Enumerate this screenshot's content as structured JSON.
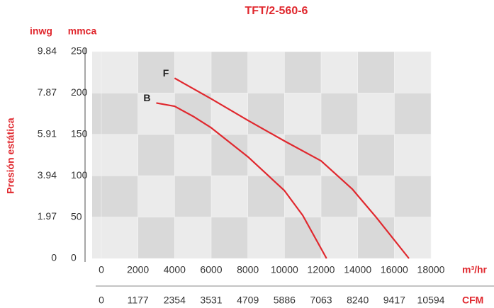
{
  "chart_data": {
    "type": "line",
    "title": "TFT/2-560-6",
    "y_label": "Presión estática",
    "y_unit": "mmca",
    "y2_unit": "inwg",
    "x_unit": "m³/hr",
    "x2_unit": "CFM",
    "xlim": [
      0,
      18000
    ],
    "xticks": [
      0,
      2000,
      4000,
      6000,
      8000,
      10000,
      12000,
      14000,
      16000,
      18000
    ],
    "x2lim": [
      0,
      10594
    ],
    "x2ticks": [
      0,
      1177,
      2354,
      3531,
      4709,
      5886,
      7063,
      8240,
      9417,
      10594
    ],
    "ylim": [
      0,
      250
    ],
    "yticks": [
      0,
      50,
      100,
      150,
      200,
      250
    ],
    "y2lim": [
      0,
      9.84
    ],
    "y2ticks": [
      0,
      1.97,
      3.94,
      5.91,
      7.87,
      9.84
    ],
    "series": [
      {
        "name": "F",
        "color": "#e0282e",
        "x": [
          4000,
          6000,
          8000,
          10000,
          12000,
          13700,
          15000,
          16800
        ],
        "values": [
          218,
          193,
          167,
          142,
          118,
          84,
          50,
          0
        ]
      },
      {
        "name": "B",
        "color": "#e0282e",
        "x": [
          3000,
          4000,
          5000,
          6000,
          8000,
          10000,
          11000,
          12300
        ],
        "values": [
          188,
          184,
          172,
          158,
          123,
          82,
          52,
          0
        ]
      }
    ]
  }
}
